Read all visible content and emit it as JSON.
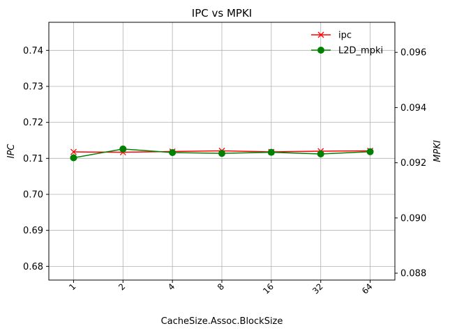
{
  "chart_data": {
    "type": "line",
    "title": "IPC vs MPKI",
    "xlabel": "CacheSize.Assoc.BlockSize",
    "ylabel_left": "IPC",
    "ylabel_right": "MPKI",
    "categories": [
      "1",
      "2",
      "4",
      "8",
      "16",
      "32",
      "64"
    ],
    "y_left_lim": [
      0.6762,
      0.7478
    ],
    "y_right_lim": [
      0.08775,
      0.09709
    ],
    "y_left_ticks": [
      "0.68",
      "0.69",
      "0.70",
      "0.71",
      "0.72",
      "0.73",
      "0.74"
    ],
    "y_right_ticks": [
      "0.088",
      "0.090",
      "0.092",
      "0.094",
      "0.096"
    ],
    "grid": true,
    "legend_position": "top-right",
    "series": [
      {
        "name": "ipc",
        "axis": "left",
        "color": "#ff0000",
        "marker": "x",
        "values": [
          0.7118,
          0.7117,
          0.7119,
          0.7121,
          0.7118,
          0.712,
          0.7121
        ]
      },
      {
        "name": "L2D_mpki",
        "axis": "right",
        "color": "#008000",
        "marker": "circle",
        "values": [
          0.09218,
          0.0925,
          0.09237,
          0.09234,
          0.09238,
          0.09232,
          0.0924
        ]
      }
    ]
  }
}
